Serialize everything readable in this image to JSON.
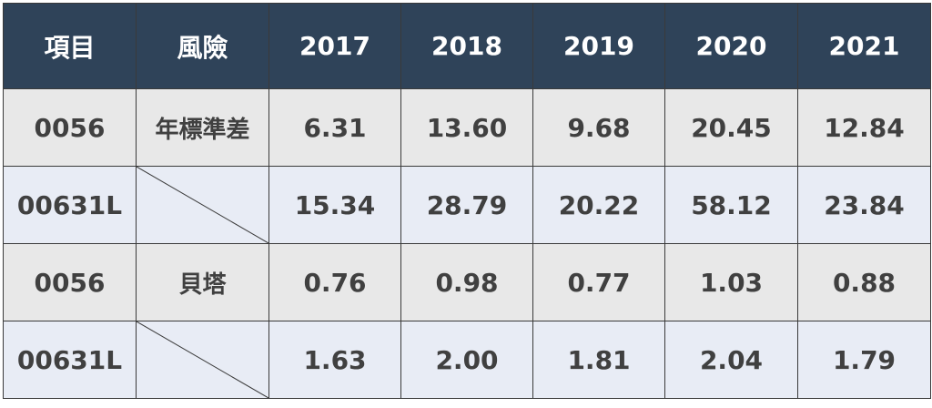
{
  "chart_data": {
    "type": "table",
    "headers": [
      "項目",
      "風險",
      "2017",
      "2018",
      "2019",
      "2020",
      "2021"
    ],
    "rows": [
      {
        "item": "0056",
        "risk": "年標準差",
        "values": [
          "6.31",
          "13.60",
          "9.68",
          "20.45",
          "12.84"
        ]
      },
      {
        "item": "00631L",
        "risk": "",
        "values": [
          "15.34",
          "28.79",
          "20.22",
          "58.12",
          "23.84"
        ]
      },
      {
        "item": "0056",
        "risk": "貝塔",
        "values": [
          "0.76",
          "0.98",
          "0.77",
          "1.03",
          "0.88"
        ]
      },
      {
        "item": "00631L",
        "risk": "",
        "values": [
          "1.63",
          "2.00",
          "1.81",
          "2.04",
          "1.79"
        ]
      }
    ]
  },
  "colors": {
    "header_bg": "#2f4359",
    "header_text": "#ffffff",
    "row_odd_bg": "#e8e8e8",
    "row_even_bg": "#e8ecf5",
    "cell_text": "#404040",
    "border": "#3a3a3a"
  }
}
